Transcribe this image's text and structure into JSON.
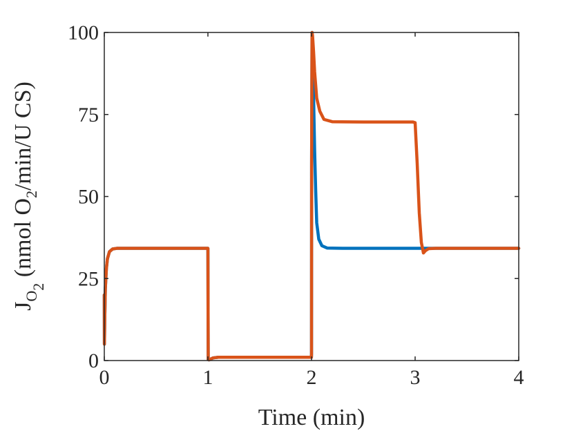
{
  "chart_data": {
    "type": "line",
    "title": "",
    "xlabel": "Time (min)",
    "ylabel": {
      "main": "J",
      "sub": "O",
      "subsub": "2",
      "units_prefix": " (nmol O",
      "units_sub": "2",
      "units_suffix": "/min/U CS)"
    },
    "xlim": [
      0,
      4
    ],
    "ylim": [
      0,
      100
    ],
    "xticks": [
      "0",
      "1",
      "2",
      "3",
      "4"
    ],
    "yticks": [
      "0",
      "25",
      "50",
      "75",
      "100"
    ],
    "grid": false,
    "legend": "none",
    "series": [
      {
        "color": "#0072BD",
        "x": [
          0,
          0.001,
          0.005,
          0.01,
          0.02,
          0.03,
          0.05,
          0.08,
          0.12,
          0.2,
          0.5,
          0.999,
          1.0,
          1.003,
          1.01,
          1.05,
          1.1,
          1.2,
          1.5,
          1.999,
          2.0,
          2.001,
          2.005,
          2.01,
          2.015,
          2.02,
          2.03,
          2.04,
          2.05,
          2.07,
          2.1,
          2.15,
          2.3,
          2.6,
          3.0,
          3.2,
          3.5,
          4.0
        ],
        "y": [
          20,
          5,
          14,
          22,
          28,
          31,
          33.2,
          34,
          34.2,
          34.2,
          34.2,
          34.2,
          34.2,
          0.3,
          0.2,
          0.8,
          1.0,
          1.0,
          1.0,
          1.0,
          2,
          60,
          100,
          96,
          90,
          80,
          64,
          52,
          42,
          37,
          35,
          34.3,
          34.2,
          34.2,
          34.2,
          34.2,
          34.2,
          34.2
        ]
      },
      {
        "color": "#D95319",
        "x": [
          0,
          0.001,
          0.005,
          0.01,
          0.02,
          0.03,
          0.05,
          0.08,
          0.12,
          0.2,
          0.5,
          0.999,
          1.0,
          1.003,
          1.01,
          1.05,
          1.1,
          1.2,
          1.5,
          1.999,
          2.0,
          2.001,
          2.005,
          2.01,
          2.02,
          2.03,
          2.05,
          2.08,
          2.12,
          2.2,
          2.5,
          2.98,
          3.0,
          3.02,
          3.04,
          3.06,
          3.08,
          3.1,
          3.13,
          3.2,
          3.5,
          4.0
        ],
        "y": [
          20,
          5,
          14,
          22,
          28,
          31,
          33.2,
          34,
          34.2,
          34.2,
          34.2,
          34.2,
          34.2,
          0.3,
          0.2,
          0.8,
          1.0,
          1.0,
          1.0,
          1.0,
          2,
          60,
          100,
          99,
          94,
          88,
          80,
          76,
          73.5,
          72.8,
          72.7,
          72.7,
          72.5,
          60,
          45,
          36,
          32.8,
          33.5,
          34.1,
          34.2,
          34.2,
          34.2
        ]
      }
    ]
  }
}
